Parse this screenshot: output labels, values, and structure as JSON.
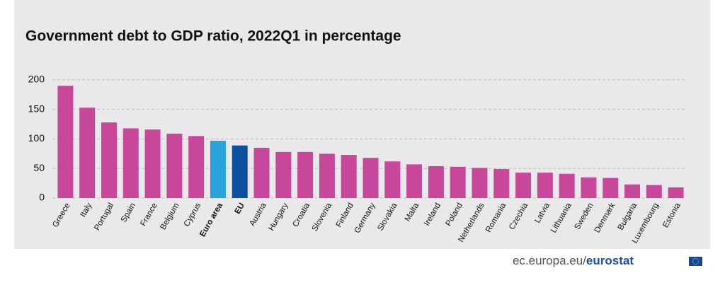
{
  "chart_data": {
    "type": "bar",
    "title": "Government debt to GDP ratio, 2022Q1 in percentage",
    "categories": [
      "Greece",
      "Italy",
      "Portugal",
      "Spain",
      "France",
      "Belgium",
      "Cyprus",
      "Euro area",
      "EU",
      "Austria",
      "Hungary",
      "Croatia",
      "Slovenia",
      "Finland",
      "Germany",
      "Slovakia",
      "Malta",
      "Ireland",
      "Poland",
      "Netherlands",
      "Romania",
      "Czechia",
      "Latvia",
      "Lithuania",
      "Sweden",
      "Denmark",
      "Bulgaria",
      "Luxembourg",
      "Estonia"
    ],
    "values": [
      190,
      153,
      128,
      118,
      116,
      109,
      105,
      97,
      89,
      85,
      78,
      78,
      75,
      73,
      68,
      62,
      57,
      54,
      53,
      51,
      49,
      43,
      43,
      41,
      35,
      34,
      23,
      22,
      18
    ],
    "color": "#c7479b",
    "colors": [
      "#c7479b",
      "#c7479b",
      "#c7479b",
      "#c7479b",
      "#c7479b",
      "#c7479b",
      "#c7479b",
      "#29a3dd",
      "#0e4e9e",
      "#c7479b",
      "#c7479b",
      "#c7479b",
      "#c7479b",
      "#c7479b",
      "#c7479b",
      "#c7479b",
      "#c7479b",
      "#c7479b",
      "#c7479b",
      "#c7479b",
      "#c7479b",
      "#c7479b",
      "#c7479b",
      "#c7479b",
      "#c7479b",
      "#c7479b",
      "#c7479b",
      "#c7479b",
      "#c7479b"
    ],
    "ylim": [
      0,
      200
    ],
    "yticks": [
      0,
      50,
      100,
      150,
      200
    ],
    "grid": true,
    "source": "ec.europa.eu/",
    "source_brand": "eurostat"
  }
}
